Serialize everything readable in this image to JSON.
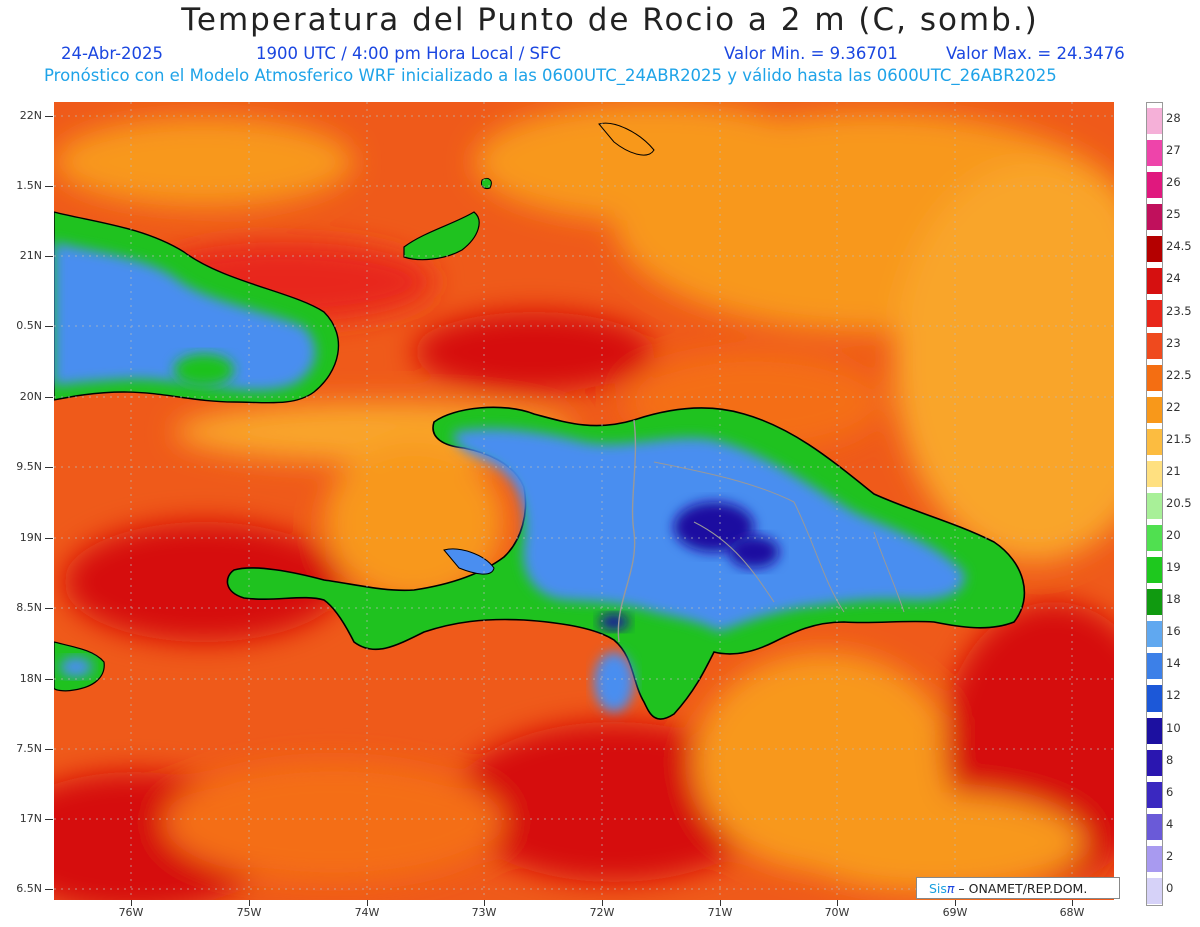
{
  "header": {
    "title": "Temperatura del Punto de Rocio a 2 m (C, somb.)",
    "date": "24-Abr-2025",
    "time": "1900 UTC / 4:00 pm Hora Local / SFC",
    "min_value": "Valor Min. = 9.36701",
    "max_value": "Valor Max. = 24.3476",
    "forecast_line": "Pronóstico con el Modelo Atmosferico WRF inicializado a las 0600UTC_24ABR2025 y válido hasta las  0600UTC_26ABR2025"
  },
  "axes": {
    "lat_labels": [
      "22N",
      "1.5N",
      "21N",
      "0.5N",
      "20N",
      "9.5N",
      "19N",
      "8.5N",
      "18N",
      "7.5N",
      "17N",
      "6.5N"
    ],
    "lon_labels": [
      "76W",
      "75W",
      "74W",
      "73W",
      "72W",
      "71W",
      "70W",
      "69W",
      "68W"
    ]
  },
  "colorbar": {
    "labels": [
      "28",
      "27",
      "26",
      "25",
      "24.5",
      "24",
      "23.5",
      "23",
      "22.5",
      "22",
      "21.5",
      "21",
      "20.5",
      "20",
      "19",
      "18",
      "16",
      "14",
      "12",
      "10",
      "8",
      "6",
      "4",
      "2",
      "0"
    ],
    "colors": [
      "#f5b0d8",
      "#ee44aa",
      "#e0187e",
      "#c0105c",
      "#b40000",
      "#d61010",
      "#e8261a",
      "#ef4a1e",
      "#f46e12",
      "#f8981a",
      "#fcbc40",
      "#ffe080",
      "#a8f098",
      "#50e050",
      "#1ec81e",
      "#109a10",
      "#60a8f0",
      "#3c80e8",
      "#1c58d8",
      "#1c10a0",
      "#2a16b0",
      "#3a28c0",
      "#6a5ad8",
      "#a89af0",
      "#d6d2f8"
    ]
  },
  "colors": {
    "ocean": "#ef5a1a",
    "land_blue": "#4a8ef0",
    "land_green": "#1fc21f",
    "coastline": "#000000",
    "border": "#999999"
  },
  "credit": {
    "sis": "Sis",
    "pi": "π",
    "org": " – ONAMET/REP.DOM."
  }
}
